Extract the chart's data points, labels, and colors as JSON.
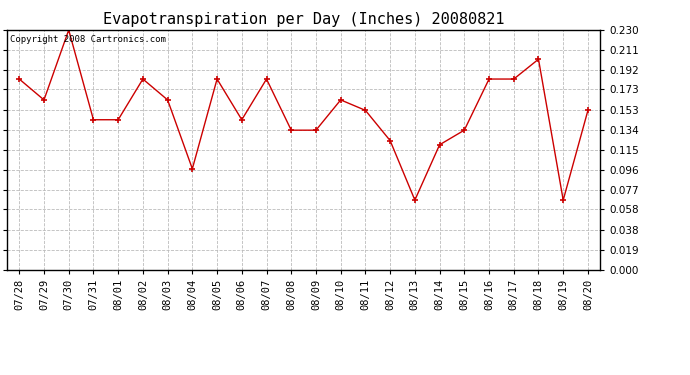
{
  "title": "Evapotranspiration per Day (Inches) 20080821",
  "copyright_text": "Copyright 2008 Cartronics.com",
  "x_labels": [
    "07/28",
    "07/29",
    "07/30",
    "07/31",
    "08/01",
    "08/02",
    "08/03",
    "08/04",
    "08/05",
    "08/06",
    "08/07",
    "08/08",
    "08/09",
    "08/10",
    "08/11",
    "08/12",
    "08/13",
    "08/14",
    "08/15",
    "08/16",
    "08/17",
    "08/18",
    "08/19",
    "08/20"
  ],
  "y_values": [
    0.183,
    0.163,
    0.23,
    0.144,
    0.144,
    0.183,
    0.163,
    0.097,
    0.183,
    0.144,
    0.183,
    0.134,
    0.134,
    0.163,
    0.153,
    0.124,
    0.067,
    0.12,
    0.134,
    0.183,
    0.183,
    0.202,
    0.067,
    0.153
  ],
  "line_color": "#cc0000",
  "marker": "+",
  "marker_color": "#cc0000",
  "marker_size": 5,
  "marker_linewidth": 1.2,
  "background_color": "#ffffff",
  "plot_bg_color": "#ffffff",
  "grid_color": "#bbbbbb",
  "grid_style": "--",
  "ylim": [
    0.0,
    0.23
  ],
  "yticks": [
    0.0,
    0.019,
    0.038,
    0.058,
    0.077,
    0.096,
    0.115,
    0.134,
    0.153,
    0.173,
    0.192,
    0.211,
    0.23
  ],
  "title_fontsize": 11,
  "tick_fontsize": 7.5,
  "copyright_fontsize": 6.5,
  "line_width": 1.0
}
